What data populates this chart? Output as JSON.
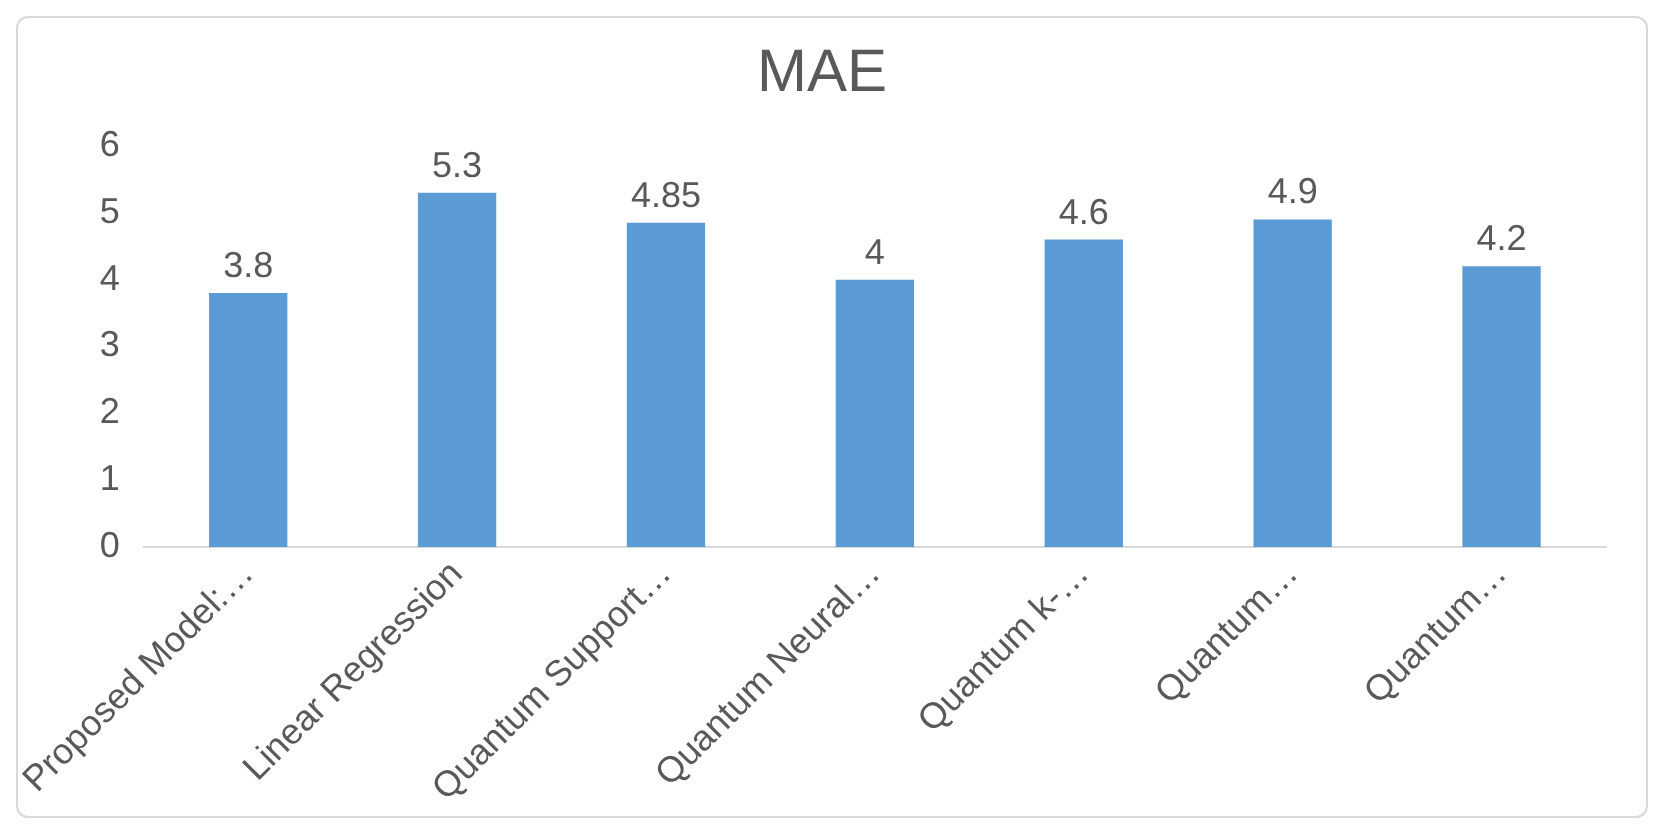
{
  "chart_data": {
    "type": "bar",
    "title": "MAE",
    "categories": [
      "Proposed Model:…",
      "Linear Regression",
      "Quantum Support…",
      "Quantum Neural…",
      "Quantum k-…",
      "Quantum…",
      "Quantum…"
    ],
    "values": [
      3.8,
      5.3,
      4.85,
      4,
      4.6,
      4.9,
      4.2
    ],
    "color": "#5b9bd5",
    "ylim": [
      0,
      6
    ],
    "yticks": [
      0,
      1,
      2,
      3,
      4,
      5,
      6
    ],
    "grid": false,
    "legend": false,
    "data_labels": true
  }
}
